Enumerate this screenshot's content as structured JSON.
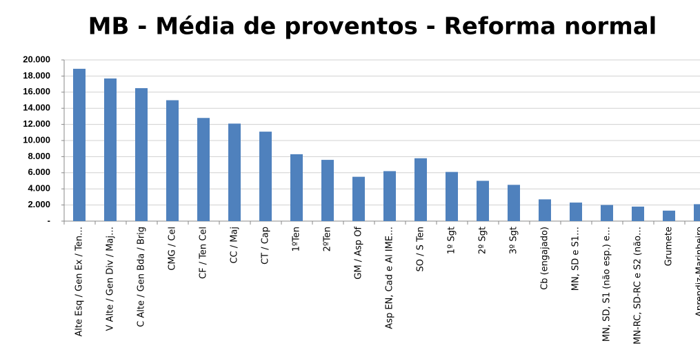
{
  "chart_data": {
    "type": "bar",
    "title": "MB - Média de proventos - Reforma normal",
    "categories": [
      "Alte Esq / Gen Ex / Ten…",
      "V Alte / Gen Div / Maj…",
      "C Alte / Gen Bda / Brig",
      "CMG / Cel",
      "CF / Ten Cel",
      "CC / Maj",
      "CT / Cap",
      "1ºTen",
      "2ºTen",
      "GM / Asp Of",
      "Asp EN, Cad e Al IME…",
      "SO / S Ten",
      "1º Sgt",
      "2º Sgt",
      "3º Sgt",
      "Cb (engajado)",
      "MN, SD e S1…",
      "MN, SD, S1 (não esp.) e…",
      "MN-RC, SD-RC e S2 (não…",
      "Grumete",
      "Aprendiz-Marinheiro"
    ],
    "values": [
      18900,
      17700,
      16500,
      15000,
      12800,
      12100,
      11100,
      8300,
      7600,
      5500,
      6200,
      7800,
      6100,
      5000,
      4500,
      2700,
      2300,
      2000,
      1800,
      1300,
      2100
    ],
    "color": "#4f81bd",
    "ylim": [
      0,
      20000
    ],
    "yticks": [
      {
        "value": 0,
        "label": "-"
      },
      {
        "value": 2000,
        "label": "2.000"
      },
      {
        "value": 4000,
        "label": "4.000"
      },
      {
        "value": 6000,
        "label": "6.000"
      },
      {
        "value": 8000,
        "label": "8.000"
      },
      {
        "value": 10000,
        "label": "10.000"
      },
      {
        "value": 12000,
        "label": "12.000"
      },
      {
        "value": 14000,
        "label": "14.000"
      },
      {
        "value": 16000,
        "label": "16.000"
      },
      {
        "value": 18000,
        "label": "18.000"
      },
      {
        "value": 20000,
        "label": "20.000"
      }
    ],
    "grid": true
  }
}
